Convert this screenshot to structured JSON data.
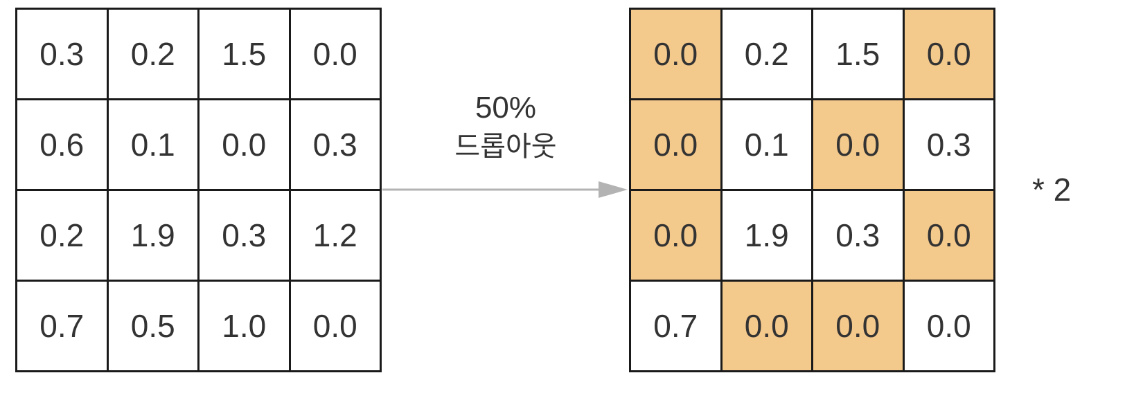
{
  "input_matrix": [
    [
      "0.3",
      "0.2",
      "1.5",
      "0.0"
    ],
    [
      "0.6",
      "0.1",
      "0.0",
      "0.3"
    ],
    [
      "0.2",
      "1.9",
      "0.3",
      "1.2"
    ],
    [
      "0.7",
      "0.5",
      "1.0",
      "0.0"
    ]
  ],
  "output_matrix": [
    [
      "0.0",
      "0.2",
      "1.5",
      "0.0"
    ],
    [
      "0.0",
      "0.1",
      "0.0",
      "0.3"
    ],
    [
      "0.0",
      "1.9",
      "0.3",
      "0.0"
    ],
    [
      "0.7",
      "0.0",
      "0.0",
      "0.0"
    ]
  ],
  "dropped_mask": [
    [
      true,
      false,
      false,
      true
    ],
    [
      true,
      false,
      true,
      false
    ],
    [
      true,
      false,
      false,
      true
    ],
    [
      false,
      true,
      true,
      false
    ]
  ],
  "arrow": {
    "label_line1": "50%",
    "label_line2": "드롭아웃"
  },
  "scale_label": "* 2",
  "colors": {
    "dropped_cell": "#f4c98c",
    "arrow": "#b3b3b3",
    "grid_line": "#1a1a1a",
    "text": "#333333"
  }
}
